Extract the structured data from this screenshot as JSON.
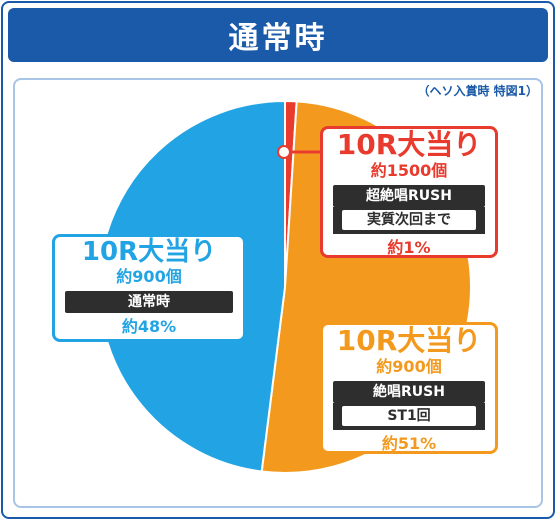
{
  "header": {
    "title": "通常時"
  },
  "note": "（ヘソ入賞時 特図1）",
  "colors": {
    "red": "#e83b2e",
    "blue": "#22a4e4",
    "orange": "#f39a1e",
    "header": "#1a5aa8"
  },
  "chart_data": {
    "type": "pie",
    "title": "通常時",
    "note": "（ヘソ入賞時 特図1）",
    "slices": [
      {
        "hit": "10R大当り",
        "balls": "約1500個",
        "mode": "超絶唱RUSH",
        "detail": "実質次回まで",
        "percent_label": "約1%",
        "value": 1,
        "color": "#e83b2e"
      },
      {
        "hit": "10R大当り",
        "balls": "約900個",
        "mode": "絶唱RUSH",
        "detail": "ST1回",
        "percent_label": "約51%",
        "value": 51,
        "color": "#f39a1e"
      },
      {
        "hit": "10R大当り",
        "balls": "約900個",
        "mode": "通常時",
        "detail": "",
        "percent_label": "約48%",
        "value": 48,
        "color": "#22a4e4"
      }
    ]
  }
}
